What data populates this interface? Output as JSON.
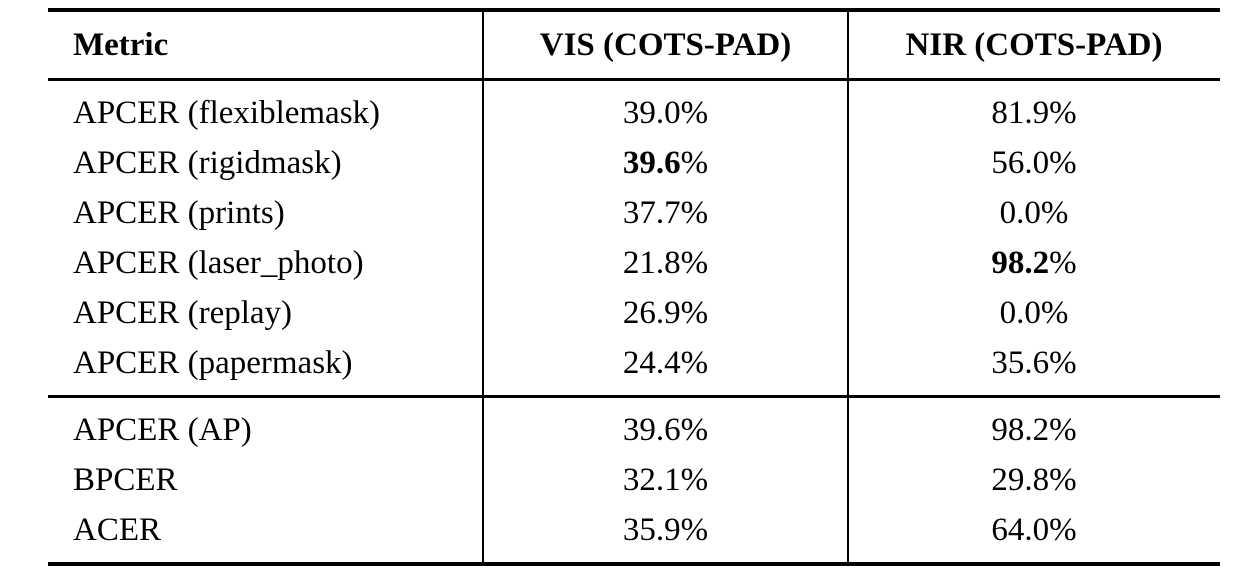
{
  "table": {
    "header": {
      "metric": "Metric",
      "vis": "VIS (COTS-PAD)",
      "nir": "NIR (COTS-PAD)"
    },
    "percent_suffix": "%",
    "sections": [
      {
        "rows": [
          {
            "metric": "APCER (flexiblemask)",
            "vis": {
              "num": "39.0",
              "bold": false
            },
            "nir": {
              "num": "81.9",
              "bold": false
            }
          },
          {
            "metric": "APCER (rigidmask)",
            "vis": {
              "num": "39.6",
              "bold": true
            },
            "nir": {
              "num": "56.0",
              "bold": false
            }
          },
          {
            "metric": "APCER (prints)",
            "vis": {
              "num": "37.7",
              "bold": false
            },
            "nir": {
              "num": "0.0",
              "bold": false
            }
          },
          {
            "metric": "APCER (laser_photo)",
            "vis": {
              "num": "21.8",
              "bold": false
            },
            "nir": {
              "num": "98.2",
              "bold": true
            }
          },
          {
            "metric": "APCER (replay)",
            "vis": {
              "num": "26.9",
              "bold": false
            },
            "nir": {
              "num": "0.0",
              "bold": false
            }
          },
          {
            "metric": "APCER (papermask)",
            "vis": {
              "num": "24.4",
              "bold": false
            },
            "nir": {
              "num": "35.6",
              "bold": false
            }
          }
        ]
      },
      {
        "rows": [
          {
            "metric": "APCER (AP)",
            "vis": {
              "num": "39.6",
              "bold": false
            },
            "nir": {
              "num": "98.2",
              "bold": false
            }
          },
          {
            "metric": "BPCER",
            "vis": {
              "num": "32.1",
              "bold": false
            },
            "nir": {
              "num": "29.8",
              "bold": false
            }
          },
          {
            "metric": "ACER",
            "vis": {
              "num": "35.9",
              "bold": false
            },
            "nir": {
              "num": "64.0",
              "bold": false
            }
          }
        ]
      }
    ],
    "colors": {
      "text": "#000000",
      "background": "#ffffff",
      "rule": "#000000"
    }
  }
}
